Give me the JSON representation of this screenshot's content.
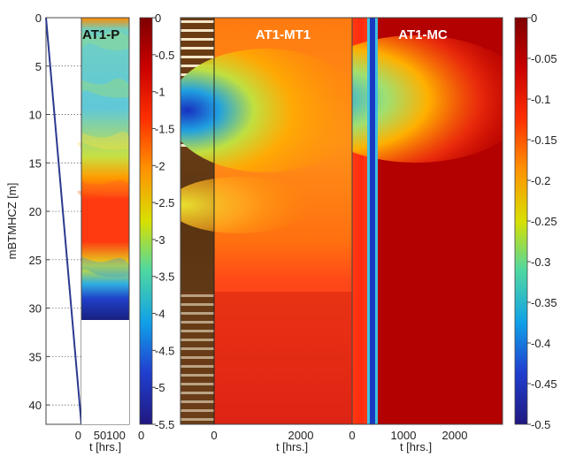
{
  "chart_data": [
    {
      "type": "line",
      "panel": "well trajectory",
      "ylabel": "mBTMHCZ [m]",
      "ylim": [
        0,
        42
      ],
      "y_inverted": true,
      "yticks": [
        "0",
        "5",
        "10",
        "15",
        "20",
        "25",
        "30",
        "35",
        "40"
      ],
      "grid": "dotted horizontal",
      "series": [
        {
          "x": [
            0,
            1
          ],
          "y": [
            0,
            42
          ],
          "color": "#2b3a8f"
        }
      ]
    },
    {
      "type": "heatmap",
      "title": "AT1-P",
      "xlabel": "t [hrs.]",
      "xlim": [
        0,
        160
      ],
      "xticks": [
        "0",
        "50",
        "100"
      ],
      "ylim": [
        0,
        31
      ],
      "colorscale": "jet_reversed",
      "colorbar": {
        "range": [
          -5.5,
          0
        ],
        "ticks": [
          "0",
          "-0.5",
          "-1",
          "-1.5",
          "-2",
          "-2.5",
          "-3",
          "-3.5",
          "-4",
          "-4.5",
          "-5",
          "-5.5"
        ],
        "bottom_label": "0"
      },
      "depth_profile": [
        {
          "depth": 0,
          "value": -1.2
        },
        {
          "depth": 4,
          "value": -2.6
        },
        {
          "depth": 10,
          "value": -2.3
        },
        {
          "depth": 15,
          "value": -1.8
        },
        {
          "depth": 17,
          "value": -0.8
        },
        {
          "depth": 23,
          "value": -0.6
        },
        {
          "depth": 26,
          "value": -2.0
        },
        {
          "depth": 28.5,
          "value": -3.7
        },
        {
          "depth": 30,
          "value": -5.2
        },
        {
          "depth": 31,
          "value": -5.0
        }
      ]
    },
    {
      "type": "heatmap",
      "title": "AT1-MT1",
      "xlabel": "t [hrs.]",
      "xticks": [
        "0",
        "2000"
      ],
      "ylim": [
        0,
        42
      ],
      "colorscale": "jet_reversed",
      "background_strip": "borehole image (brown/white bands)",
      "features": [
        {
          "depth_range": [
            5,
            16
          ],
          "t_range": [
            0,
            700
          ],
          "value_min": -0.45
        },
        {
          "depth_range": [
            18,
            23
          ],
          "t_range": [
            0,
            400
          ],
          "value_min": -0.25
        }
      ]
    },
    {
      "type": "heatmap",
      "title": "AT1-MC",
      "xlabel": "t [hrs.]",
      "xticks": [
        "0",
        "1000",
        "2000"
      ],
      "ylim": [
        0,
        42
      ],
      "colorscale": "jet_reversed",
      "colorbar": {
        "range": [
          -0.5,
          0
        ],
        "ticks": [
          "0",
          "-0.05",
          "-0.1",
          "-0.15",
          "-0.2",
          "-0.25",
          "-0.3",
          "-0.35",
          "-0.4",
          "-0.45",
          "-0.5"
        ]
      },
      "features": [
        {
          "depth_range": [
            5,
            16
          ],
          "t_range": [
            0,
            2800
          ],
          "value_min": -0.45
        },
        {
          "depth_range": [
            0,
            42
          ],
          "t_range": [
            350,
            450
          ],
          "value_min": -0.5
        }
      ]
    }
  ]
}
